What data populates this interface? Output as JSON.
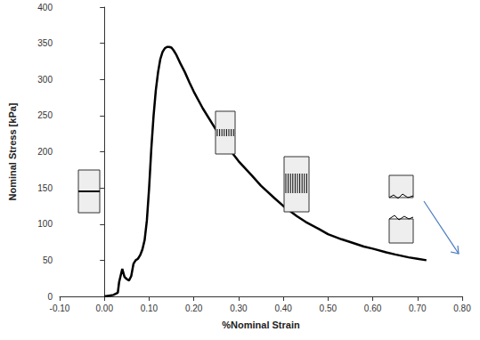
{
  "chart_data": {
    "type": "line",
    "x_label": "%Nominal Strain",
    "y_label": "Nominal Stress [kPa]",
    "x": [
      0.0,
      0.02,
      0.03,
      0.033,
      0.04,
      0.045,
      0.05,
      0.055,
      0.06,
      0.065,
      0.07,
      0.075,
      0.08,
      0.085,
      0.09,
      0.095,
      0.1,
      0.105,
      0.11,
      0.115,
      0.12,
      0.125,
      0.13,
      0.135,
      0.14,
      0.145,
      0.15,
      0.155,
      0.16,
      0.17,
      0.18,
      0.19,
      0.2,
      0.22,
      0.25,
      0.28,
      0.3,
      0.33,
      0.35,
      0.38,
      0.4,
      0.43,
      0.45,
      0.48,
      0.5,
      0.53,
      0.55,
      0.58,
      0.6,
      0.63,
      0.65,
      0.68,
      0.7,
      0.72
    ],
    "series": [
      {
        "name": "Nominal Stress",
        "color": "#000000",
        "values": [
          0,
          2,
          5,
          20,
          38,
          27,
          24,
          22,
          28,
          45,
          50,
          52,
          57,
          65,
          78,
          105,
          150,
          205,
          250,
          285,
          310,
          328,
          338,
          343,
          345,
          345,
          344,
          340,
          335,
          322,
          310,
          296,
          283,
          260,
          230,
          203,
          187,
          167,
          153,
          136,
          125,
          111,
          103,
          93,
          86,
          79,
          75,
          69,
          66,
          61,
          58,
          54,
          52,
          50
        ]
      }
    ],
    "xlim": [
      -0.1,
      0.8
    ],
    "xticks": [
      {
        "value": -0.1,
        "label": "-0.10"
      },
      {
        "value": 0,
        "label": "0.00"
      },
      {
        "value": 0.1,
        "label": "0.10"
      },
      {
        "value": 0.2,
        "label": "0.20"
      },
      {
        "value": 0.3,
        "label": "0.30"
      },
      {
        "value": 0.4,
        "label": "0.40"
      },
      {
        "value": 0.5,
        "label": "0.50"
      },
      {
        "value": 0.6,
        "label": "0.60"
      },
      {
        "value": 0.7,
        "label": "0.70"
      },
      {
        "value": 0.8,
        "label": "0.80"
      }
    ],
    "ylim": [
      0,
      400
    ],
    "yticks": [
      0,
      50,
      100,
      150,
      200,
      250,
      300,
      350,
      400
    ],
    "grid": false,
    "line_style": "solid",
    "marker": "none"
  }
}
